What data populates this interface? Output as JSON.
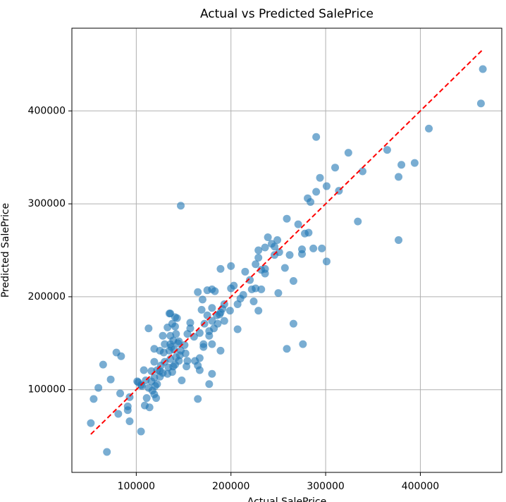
{
  "chart_data": {
    "type": "scatter",
    "title": "Actual vs Predicted SalePrice",
    "x_label": "Actual SalePrice",
    "y_label": "Predicted SalePrice",
    "color": "#1f77b4",
    "grid": true,
    "xlim": [
      32000,
      486000
    ],
    "ylim": [
      11000,
      489000
    ],
    "xticks": [
      100000,
      200000,
      300000,
      400000
    ],
    "yticks": [
      100000,
      200000,
      300000,
      400000
    ],
    "reference_line": {
      "x": [
        52000,
        466000
      ],
      "y": [
        52000,
        466000
      ],
      "color": "#ff0000"
    },
    "x": [
      466000,
      464000,
      409000,
      394000,
      380000,
      377000,
      365000,
      377000,
      339000,
      334000,
      314000,
      310000,
      324000,
      290000,
      294000,
      301000,
      290000,
      281000,
      284000,
      296000,
      301000,
      287000,
      278000,
      282000,
      271000,
      259000,
      275000,
      275000,
      262000,
      257000,
      266000,
      250000,
      266000,
      276000,
      259000,
      229000,
      147000,
      207000,
      189000,
      180000,
      177000,
      165000,
      105000,
      69000,
      52000,
      55000,
      60000,
      65000,
      73000,
      79000,
      84000,
      83000,
      81000,
      91000,
      91000,
      93000,
      93000,
      113000,
      101000,
      102000,
      109000,
      114000,
      111000,
      108000,
      119000,
      121000,
      148000,
      154000,
      162000,
      167000,
      136000,
      141000,
      165000,
      170000,
      175000,
      180000,
      183000,
      189000,
      200000,
      203000,
      200000,
      213000,
      215000,
      220000,
      226000,
      229000,
      229000,
      232000,
      236000,
      232000,
      226000,
      239000,
      243000,
      246000,
      249000,
      251000,
      236000,
      207000,
      210000,
      191000,
      188000,
      193000,
      185000,
      180000,
      182000,
      177000,
      172000,
      169000,
      167000,
      157000,
      157000,
      154000,
      161000,
      171000,
      180000,
      177000,
      171000,
      151000,
      152000,
      167000,
      165000,
      153000,
      147000,
      145000,
      141000,
      133000,
      128000,
      136000,
      139000,
      144000,
      140000,
      135000,
      129000,
      125000,
      119000,
      122000,
      126000,
      130000,
      136000,
      142000,
      146000,
      141000,
      134000,
      128000,
      133000,
      125000,
      119000,
      116000,
      122000,
      125000,
      138000,
      139000,
      145000,
      142000,
      138000,
      137000,
      130000,
      119000,
      105000,
      110000,
      113000,
      120000,
      117000,
      106000,
      116000,
      135000,
      143000,
      136000,
      186000,
      193000,
      199000,
      180000,
      175000,
      189000,
      246000,
      224000,
      222000,
      236000
    ],
    "y": [
      445000,
      408000,
      381000,
      344000,
      342000,
      329000,
      358000,
      261000,
      335000,
      281000,
      314000,
      339000,
      355000,
      372000,
      328000,
      319000,
      313000,
      306000,
      302000,
      252000,
      238000,
      252000,
      268000,
      269000,
      278000,
      284000,
      251000,
      246000,
      245000,
      231000,
      217000,
      204000,
      171000,
      149000,
      144000,
      185000,
      298000,
      165000,
      142000,
      117000,
      106000,
      90000,
      55000,
      33000,
      64000,
      90000,
      102000,
      127000,
      111000,
      140000,
      136000,
      96000,
      74000,
      78000,
      82000,
      66000,
      92000,
      166000,
      109000,
      108000,
      83000,
      81000,
      91000,
      121000,
      95000,
      91000,
      110000,
      131000,
      131000,
      121000,
      182000,
      178000,
      205000,
      197000,
      207000,
      208000,
      206000,
      230000,
      233000,
      212000,
      209000,
      202000,
      227000,
      218000,
      235000,
      250000,
      242000,
      229000,
      225000,
      208000,
      209000,
      264000,
      257000,
      254000,
      261000,
      248000,
      253000,
      192000,
      198000,
      187000,
      181000,
      192000,
      180000,
      174000,
      166000,
      163000,
      171000,
      186000,
      161000,
      172000,
      166000,
      160000,
      157000,
      149000,
      149000,
      158000,
      146000,
      148000,
      139000,
      134000,
      126000,
      125000,
      142000,
      152000,
      168000,
      167000,
      158000,
      158000,
      153000,
      150000,
      143000,
      142000,
      140000,
      142000,
      130000,
      121000,
      126000,
      130000,
      133000,
      135000,
      137000,
      127000,
      124000,
      118000,
      117000,
      114000,
      113000,
      109000,
      106000,
      120000,
      119000,
      125000,
      131000,
      160000,
      171000,
      146000,
      149000,
      144000,
      105000,
      110000,
      102000,
      104000,
      99000,
      104000,
      120000,
      182000,
      177000,
      149000,
      171000,
      174000,
      185000,
      188000,
      180000,
      183000,
      245000,
      195000,
      208000,
      230000
    ]
  }
}
